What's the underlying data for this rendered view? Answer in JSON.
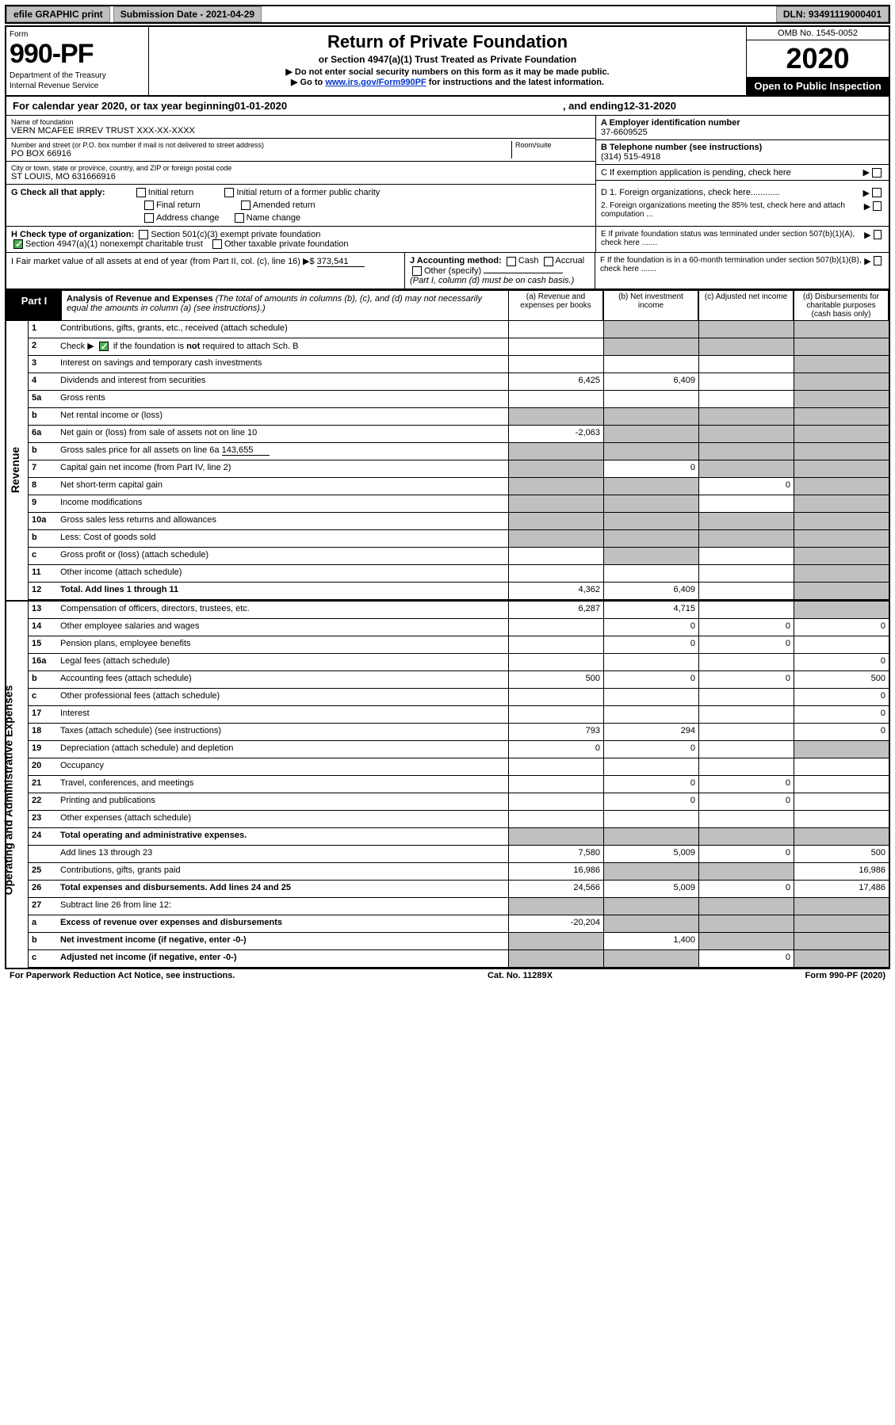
{
  "topbar": {
    "efile": "efile GRAPHIC print",
    "submission_label": "Submission Date - 2021-04-29",
    "dln": "DLN: 93491119000401"
  },
  "header": {
    "form_word": "Form",
    "form_num": "990-PF",
    "dept": "Department of the Treasury",
    "irs": "Internal Revenue Service",
    "title": "Return of Private Foundation",
    "subtitle": "or Section 4947(a)(1) Trust Treated as Private Foundation",
    "note1": "▶ Do not enter social security numbers on this form as it may be made public.",
    "note2_pre": "▶ Go to ",
    "note2_link": "www.irs.gov/Form990PF",
    "note2_post": " for instructions and the latest information.",
    "omb": "OMB No. 1545-0052",
    "year": "2020",
    "open": "Open to Public Inspection"
  },
  "calendar": {
    "pre": "For calendar year 2020, or tax year beginning ",
    "begin": "01-01-2020",
    "mid": ", and ending ",
    "end": "12-31-2020"
  },
  "id": {
    "name_lbl": "Name of foundation",
    "name": "VERN MCAFEE IRREV TRUST XXX-XX-XXXX",
    "addr_lbl": "Number and street (or P.O. box number if mail is not delivered to street address)",
    "room_lbl": "Room/suite",
    "addr": "PO BOX 66916",
    "city_lbl": "City or town, state or province, country, and ZIP or foreign postal code",
    "city": "ST LOUIS, MO  631666916",
    "a_hdr": "A Employer identification number",
    "a_val": "37-6609525",
    "b_hdr": "B Telephone number (see instructions)",
    "b_val": "(314) 515-4918",
    "c_text": "C If exemption application is pending, check here"
  },
  "g": {
    "label": "G Check all that apply:",
    "opt1": "Initial return",
    "opt2": "Final return",
    "opt3": "Address change",
    "opt4": "Initial return of a former public charity",
    "opt5": "Amended return",
    "opt6": "Name change"
  },
  "h": {
    "label": "H Check type of organization:",
    "opt1": "Section 501(c)(3) exempt private foundation",
    "opt2": "Section 4947(a)(1) nonexempt charitable trust",
    "opt3": "Other taxable private foundation"
  },
  "d": {
    "d1": "D 1. Foreign organizations, check here............",
    "d2": "2. Foreign organizations meeting the 85% test, check here and attach computation ..."
  },
  "e": "E  If private foundation status was terminated under section 507(b)(1)(A), check here .......",
  "i": {
    "label": "I Fair market value of all assets at end of year (from Part II, col. (c), line 16) ▶$",
    "val": "373,541"
  },
  "j": {
    "label": "J Accounting method:",
    "cash": "Cash",
    "accrual": "Accrual",
    "other": "Other (specify)",
    "note": "(Part I, column (d) must be on cash basis.)"
  },
  "f": "F  If the foundation is in a 60-month termination under section 507(b)(1)(B), check here .......",
  "part1": {
    "label": "Part I",
    "title": "Analysis of Revenue and Expenses",
    "title_note": " (The total of amounts in columns (b), (c), and (d) may not necessarily equal the amounts in column (a) (see instructions).)",
    "col_a": "(a) Revenue and expenses per books",
    "col_b": "(b) Net investment income",
    "col_c": "(c) Adjusted net income",
    "col_d": "(d) Disbursements for charitable purposes (cash basis only)"
  },
  "side_labels": {
    "revenue": "Revenue",
    "expenses": "Operating and Administrative Expenses"
  },
  "rows": {
    "r1": "Contributions, gifts, grants, etc., received (attach schedule)",
    "r2_pre": "Check ▶ ",
    "r2_post": " if the foundation is not required to attach Sch. B",
    "r3": "Interest on savings and temporary cash investments",
    "r4": "Dividends and interest from securities",
    "r5a": "Gross rents",
    "r5b": "Net rental income or (loss)",
    "r6a": "Net gain or (loss) from sale of assets not on line 10",
    "r6b": "Gross sales price for all assets on line 6a",
    "r6b_val": "143,655",
    "r7": "Capital gain net income (from Part IV, line 2)",
    "r8": "Net short-term capital gain",
    "r9": "Income modifications",
    "r10a": "Gross sales less returns and allowances",
    "r10b": "Less: Cost of goods sold",
    "r10c": "Gross profit or (loss) (attach schedule)",
    "r11": "Other income (attach schedule)",
    "r12": "Total. Add lines 1 through 11",
    "r13": "Compensation of officers, directors, trustees, etc.",
    "r14": "Other employee salaries and wages",
    "r15": "Pension plans, employee benefits",
    "r16a": "Legal fees (attach schedule)",
    "r16b": "Accounting fees (attach schedule)",
    "r16c": "Other professional fees (attach schedule)",
    "r17": "Interest",
    "r18": "Taxes (attach schedule) (see instructions)",
    "r19": "Depreciation (attach schedule) and depletion",
    "r20": "Occupancy",
    "r21": "Travel, conferences, and meetings",
    "r22": "Printing and publications",
    "r23": "Other expenses (attach schedule)",
    "r24": "Total operating and administrative expenses.",
    "r24b": "Add lines 13 through 23",
    "r25": "Contributions, gifts, grants paid",
    "r26": "Total expenses and disbursements. Add lines 24 and 25",
    "r27": "Subtract line 26 from line 12:",
    "r27a": "Excess of revenue over expenses and disbursements",
    "r27b": "Net investment income (if negative, enter -0-)",
    "r27c": "Adjusted net income (if negative, enter -0-)"
  },
  "vals": {
    "r4_a": "6,425",
    "r4_b": "6,409",
    "r6a_a": "-2,063",
    "r7_b": "0",
    "r8_c": "0",
    "r12_a": "4,362",
    "r12_b": "6,409",
    "r13_a": "6,287",
    "r13_b": "4,715",
    "r14_b": "0",
    "r14_c": "0",
    "r14_d": "0",
    "r15_b": "0",
    "r15_c": "0",
    "r16a_d": "0",
    "r16b_a": "500",
    "r16b_b": "0",
    "r16b_c": "0",
    "r16b_d": "500",
    "r16c_d": "0",
    "r17_d": "0",
    "r18_a": "793",
    "r18_b": "294",
    "r18_d": "0",
    "r19_a": "0",
    "r19_b": "0",
    "r21_b": "0",
    "r21_c": "0",
    "r22_b": "0",
    "r22_c": "0",
    "r24_a": "7,580",
    "r24_b": "5,009",
    "r24_c": "0",
    "r24_d": "500",
    "r25_a": "16,986",
    "r25_d": "16,986",
    "r26_a": "24,566",
    "r26_b": "5,009",
    "r26_c": "0",
    "r26_d": "17,486",
    "r27a_a": "-20,204",
    "r27b_b": "1,400",
    "r27c_c": "0"
  },
  "footer": {
    "left": "For Paperwork Reduction Act Notice, see instructions.",
    "mid": "Cat. No. 11289X",
    "right": "Form 990-PF (2020)"
  },
  "colors": {
    "grey": "#c0c0c0",
    "link": "#0033cc",
    "green": "#4caf50"
  }
}
